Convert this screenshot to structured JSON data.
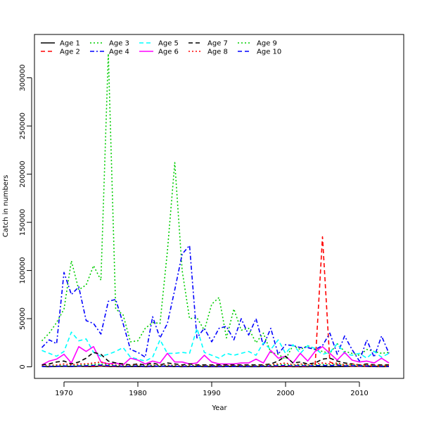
{
  "chart_data": {
    "type": "line",
    "title": "",
    "xlabel": "Year",
    "ylabel": "Catch in numbers",
    "xlim": [
      1966,
      2016
    ],
    "ylim": [
      -12000,
      345000
    ],
    "xticks": [
      1970,
      1980,
      1990,
      2000,
      2010
    ],
    "yticks": [
      0,
      50000,
      100000,
      150000,
      200000,
      250000,
      300000
    ],
    "grid": false,
    "legend_position": "top-left",
    "x": [
      1967,
      1968,
      1969,
      1970,
      1971,
      1972,
      1973,
      1974,
      1975,
      1976,
      1977,
      1978,
      1979,
      1980,
      1981,
      1982,
      1983,
      1984,
      1985,
      1986,
      1987,
      1988,
      1989,
      1990,
      1991,
      1992,
      1993,
      1994,
      1995,
      1996,
      1997,
      1998,
      1999,
      2000,
      2001,
      2002,
      2003,
      2004,
      2005,
      2006,
      2007,
      2008,
      2009,
      2010,
      2011,
      2012,
      2013,
      2014
    ],
    "series": [
      {
        "name": "Age 1",
        "color": "#000000",
        "dash": "solid",
        "values": [
          300,
          200,
          400,
          500,
          300,
          600,
          400,
          300,
          800,
          400,
          300,
          200,
          300,
          400,
          200,
          300,
          500,
          400,
          300,
          200,
          300,
          400,
          200,
          300,
          200,
          300,
          400,
          200,
          300,
          200,
          300,
          200,
          300,
          400,
          200,
          300,
          200,
          400,
          300,
          200,
          300,
          400,
          500,
          600,
          400,
          300,
          200,
          300
        ]
      },
      {
        "name": "Age 2",
        "color": "#ff0000",
        "dash": "dashed",
        "values": [
          500,
          400,
          600,
          800,
          600,
          900,
          700,
          500,
          1200,
          600,
          500,
          400,
          500,
          700,
          400,
          500,
          800,
          600,
          500,
          400,
          500,
          700,
          400,
          500,
          400,
          500,
          700,
          400,
          500,
          400,
          500,
          400,
          600,
          700,
          400,
          600,
          500,
          1000,
          135000,
          5000,
          2000,
          1000,
          800,
          700,
          600,
          500,
          400,
          500
        ]
      },
      {
        "name": "Age 3",
        "color": "#00cd00",
        "dash": "dotted",
        "values": [
          27000,
          35000,
          46000,
          60000,
          110000,
          80000,
          85000,
          105000,
          90000,
          325000,
          60000,
          54000,
          26000,
          27000,
          40000,
          46000,
          45000,
          120000,
          212000,
          100000,
          50000,
          51000,
          38000,
          65000,
          72000,
          30000,
          60000,
          38000,
          40000,
          25000,
          35000,
          15000,
          13000,
          8000,
          22000,
          18000,
          22000,
          18000,
          16000,
          14000,
          24000,
          16000,
          14000,
          12000,
          18000,
          16000,
          14000,
          15000
        ]
      },
      {
        "name": "Age 4",
        "color": "#0000ff",
        "dash": "dashdot",
        "values": [
          20000,
          28000,
          24000,
          98000,
          75000,
          83000,
          48000,
          45000,
          34000,
          68000,
          70000,
          45000,
          18000,
          15000,
          10000,
          52000,
          30000,
          45000,
          80000,
          117000,
          126000,
          30000,
          40000,
          26000,
          40000,
          42000,
          28000,
          50000,
          33000,
          50000,
          22000,
          40000,
          13000,
          23000,
          22000,
          20000,
          20000,
          18000,
          22000,
          35000,
          13000,
          32000,
          18000,
          6000,
          28000,
          10000,
          32000,
          14000
        ]
      },
      {
        "name": "Age 5",
        "color": "#00ffff",
        "dash": "dashed",
        "values": [
          17000,
          14000,
          11000,
          16000,
          36000,
          27000,
          29000,
          15000,
          11000,
          13000,
          16000,
          20000,
          10000,
          8000,
          6000,
          10000,
          28000,
          14000,
          14000,
          15000,
          14000,
          40000,
          15000,
          12000,
          9000,
          14000,
          12000,
          14000,
          16000,
          12000,
          25000,
          18000,
          28000,
          14000,
          23000,
          14000,
          22000,
          19000,
          13000,
          15000,
          24000,
          14000,
          12000,
          14000,
          9000,
          16000,
          10000,
          14000
        ]
      },
      {
        "name": "Age 6",
        "color": "#ff00ff",
        "dash": "solid",
        "values": [
          2000,
          6000,
          8000,
          13000,
          4000,
          21000,
          16000,
          21000,
          5000,
          3000,
          4000,
          2000,
          9000,
          7000,
          3000,
          6000,
          4000,
          14000,
          5000,
          5000,
          3000,
          4000,
          12000,
          5000,
          3000,
          3000,
          3000,
          4000,
          4000,
          8000,
          4000,
          17000,
          9000,
          11000,
          4000,
          14000,
          6000,
          16000,
          21000,
          14000,
          7000,
          15000,
          7000,
          5000,
          6000,
          4000,
          9000,
          4000
        ]
      },
      {
        "name": "Age 7",
        "color": "#000000",
        "dash": "dashed",
        "values": [
          2000,
          3000,
          5000,
          6000,
          3000,
          5000,
          9000,
          15000,
          13000,
          6000,
          4000,
          3000,
          2000,
          3000,
          2000,
          4000,
          2000,
          4000,
          3000,
          2000,
          3000,
          2000,
          2000,
          2000,
          2000,
          2000,
          2000,
          2000,
          2000,
          2000,
          2000,
          3000,
          6000,
          11000,
          4000,
          5000,
          3000,
          4000,
          8000,
          9000,
          6000,
          4000,
          3000,
          2000,
          3000,
          2000,
          2000,
          2000
        ]
      },
      {
        "name": "Age 8",
        "color": "#ff0000",
        "dash": "dotted",
        "values": [
          1000,
          1500,
          2000,
          3000,
          2000,
          3000,
          3000,
          4000,
          5000,
          3000,
          2000,
          1500,
          1500,
          2000,
          1000,
          2000,
          1500,
          2000,
          1500,
          1000,
          1500,
          1500,
          1000,
          1500,
          1000,
          1500,
          1000,
          1500,
          1000,
          1000,
          1500,
          2000,
          3000,
          4000,
          2000,
          3000,
          2000,
          3000,
          4000,
          3000,
          4000,
          2000,
          3000,
          2000,
          2000,
          1500,
          1500,
          1500
        ]
      },
      {
        "name": "Age 9",
        "color": "#00cd00",
        "dash": "dotted",
        "values": [
          500,
          800,
          1000,
          1500,
          1000,
          1500,
          2000,
          2500,
          3000,
          2000,
          1500,
          1000,
          1000,
          1500,
          800,
          1500,
          1000,
          1500,
          1000,
          800,
          1000,
          1000,
          800,
          1000,
          800,
          1000,
          800,
          1000,
          800,
          800,
          1000,
          1500,
          2000,
          2500,
          1500,
          2000,
          1500,
          2000,
          2500,
          2000,
          3000,
          1500,
          2000,
          1500,
          1500,
          1000,
          1000,
          1000
        ]
      },
      {
        "name": "Age 10",
        "color": "#0000ff",
        "dash": "dashed",
        "values": [
          300,
          500,
          600,
          800,
          600,
          900,
          1200,
          1500,
          1800,
          1200,
          900,
          600,
          600,
          900,
          500,
          900,
          600,
          900,
          600,
          500,
          600,
          600,
          500,
          600,
          500,
          600,
          500,
          600,
          500,
          500,
          600,
          900,
          1200,
          1500,
          900,
          1200,
          900,
          1200,
          1500,
          1200,
          1800,
          900,
          1200,
          900,
          900,
          600,
          600,
          600
        ]
      }
    ]
  }
}
